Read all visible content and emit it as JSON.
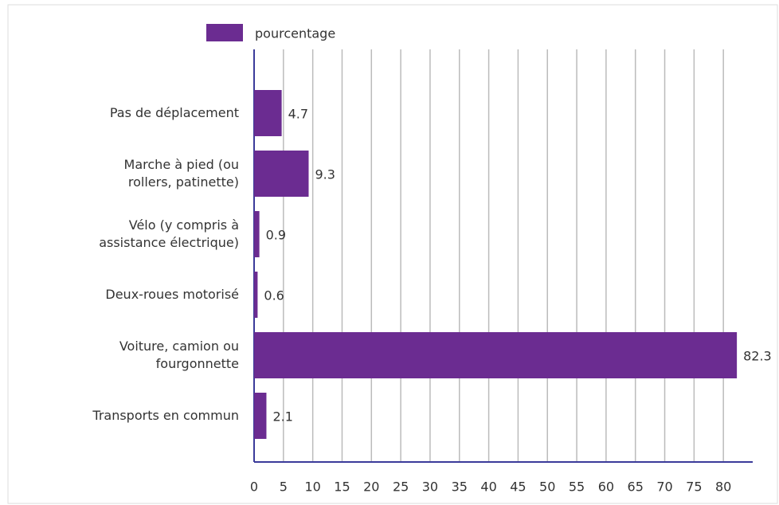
{
  "chart_data": {
    "type": "bar",
    "orientation": "horizontal",
    "categories": [
      "Pas de déplacement",
      "Marche à pied (ou rollers, patinette)",
      "Vélo (y compris à assistance électrique)",
      "Deux-roues motorisé",
      "Voiture, camion ou fourgonnette",
      "Transports en commun"
    ],
    "series": [
      {
        "name": "pourcentage",
        "color": "#6b2c91",
        "values": [
          4.7,
          9.3,
          0.9,
          0.6,
          82.3,
          2.1
        ]
      }
    ],
    "xlim": [
      0,
      85
    ],
    "xticks": [
      0,
      5,
      10,
      15,
      20,
      25,
      30,
      35,
      40,
      45,
      50,
      55,
      60,
      65,
      70,
      75,
      80
    ],
    "grid": true,
    "legend": "top"
  }
}
